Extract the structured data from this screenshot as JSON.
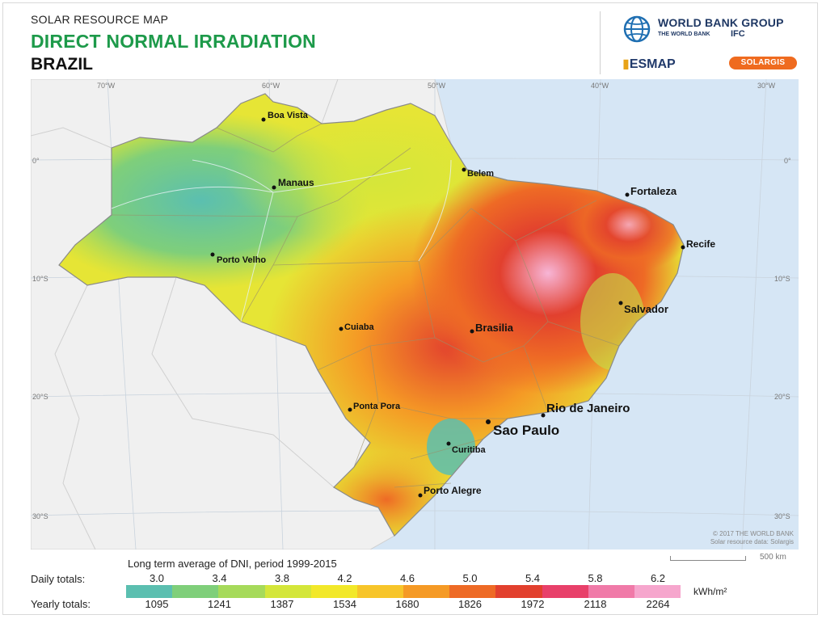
{
  "header": {
    "kicker": "SOLAR RESOURCE MAP",
    "title": "DIRECT NORMAL IRRADIATION",
    "country": "BRAZIL"
  },
  "logos": {
    "wbg_name": "WORLD BANK GROUP",
    "wbg_sub": "THE WORLD BANK",
    "wbg_ifc": "IFC",
    "esmap": "ESMAP",
    "solargis": "SOLARGIS"
  },
  "map": {
    "longitudes": [
      "70°W",
      "60°W",
      "50°W",
      "40°W",
      "30°W"
    ],
    "latitudes": [
      "0°",
      "10°S",
      "20°S",
      "30°S"
    ],
    "cities": [
      {
        "name": "Boa Vista"
      },
      {
        "name": "Manaus"
      },
      {
        "name": "Belem"
      },
      {
        "name": "Fortaleza"
      },
      {
        "name": "Recife"
      },
      {
        "name": "Porto Velho"
      },
      {
        "name": "Salvador"
      },
      {
        "name": "Cuiaba"
      },
      {
        "name": "Brasilia"
      },
      {
        "name": "Ponta Pora"
      },
      {
        "name": "Rio de Janeiro"
      },
      {
        "name": "Sao Paulo"
      },
      {
        "name": "Curitiba"
      },
      {
        "name": "Porto Alegre"
      }
    ],
    "copyright_1": "© 2017 THE WORLD BANK",
    "copyright_2": "Solar resource data: Solargis",
    "scale_label": "500 km"
  },
  "legend": {
    "title": "Long term average of DNI, period 1999-2015",
    "daily_label": "Daily totals:",
    "yearly_label": "Yearly totals:",
    "daily_ticks": [
      "3.0",
      "3.4",
      "3.8",
      "4.2",
      "4.6",
      "5.0",
      "5.4",
      "5.8",
      "6.2"
    ],
    "yearly_ticks": [
      "1095",
      "1241",
      "1387",
      "1534",
      "1680",
      "1826",
      "1972",
      "2118",
      "2264"
    ],
    "unit": "kWh/m²",
    "colors": [
      "#5bbfb0",
      "#7fcf7a",
      "#a6da5a",
      "#d4e63a",
      "#f2e82a",
      "#f7c52a",
      "#f59a25",
      "#ee6a25",
      "#e2402e",
      "#e8406a",
      "#f07aa8",
      "#f6a6cd"
    ]
  }
}
